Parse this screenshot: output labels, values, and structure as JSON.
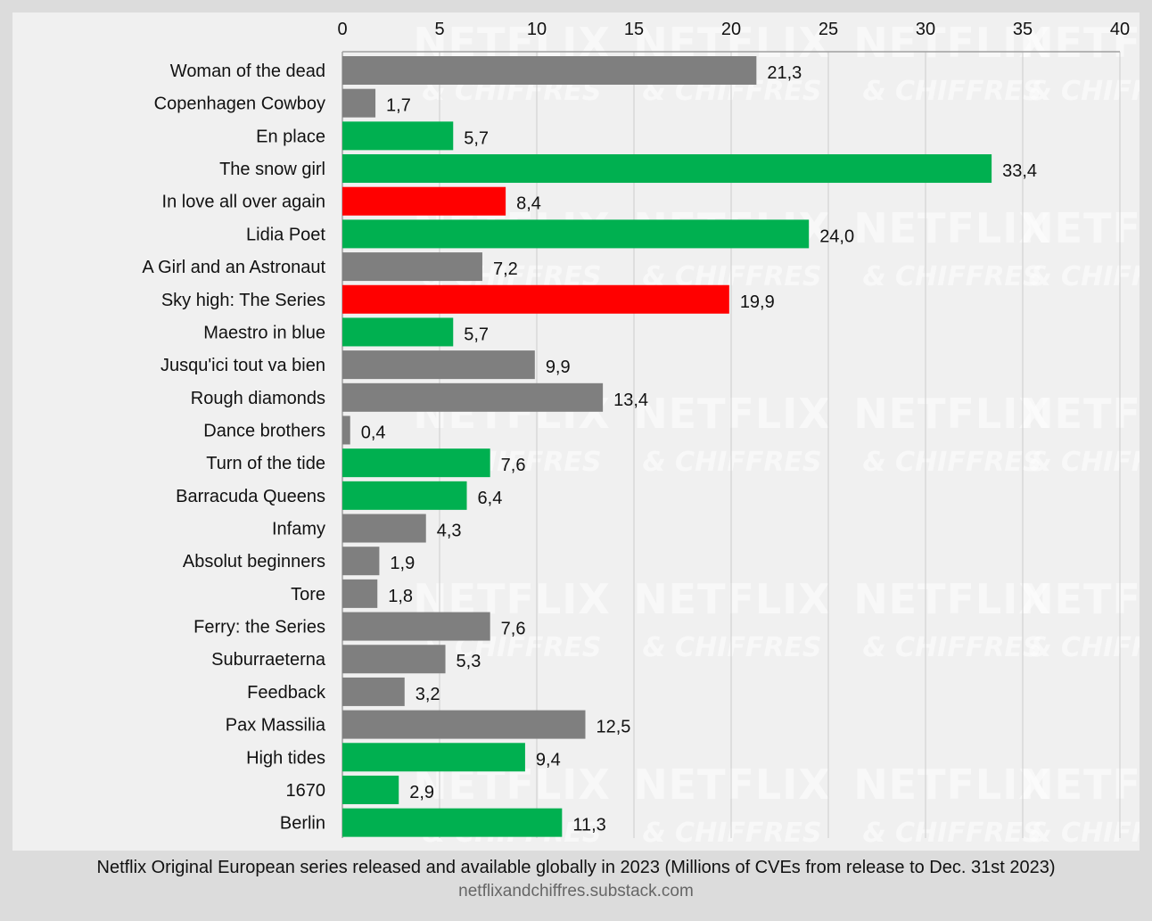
{
  "chart_data": {
    "type": "bar",
    "orientation": "horizontal",
    "categories": [
      "Woman of the dead",
      "Copenhagen Cowboy",
      "En place",
      "The snow girl",
      "In love all over again",
      "Lidia Poet",
      "A Girl and an Astronaut",
      "Sky high: The Series",
      "Maestro in blue",
      "Jusqu'ici tout va bien",
      "Rough diamonds",
      "Dance brothers",
      "Turn of the tide",
      "Barracuda Queens",
      "Infamy",
      "Absolut beginners",
      "Tore",
      "Ferry: the Series",
      "Suburraeterna",
      "Feedback",
      "Pax Massilia",
      "High tides",
      "1670",
      "Berlin"
    ],
    "values": [
      21.3,
      1.7,
      5.7,
      33.4,
      8.4,
      24.0,
      7.2,
      19.9,
      5.7,
      9.9,
      13.4,
      0.4,
      7.6,
      6.4,
      4.3,
      1.9,
      1.8,
      7.6,
      5.3,
      3.2,
      12.5,
      9.4,
      2.9,
      11.3
    ],
    "value_labels": [
      "21,3",
      "1,7",
      "5,7",
      "33,4",
      "8,4",
      "24,0",
      "7,2",
      "19,9",
      "5,7",
      "9,9",
      "13,4",
      "0,4",
      "7,6",
      "6,4",
      "4,3",
      "1,9",
      "1,8",
      "7,6",
      "5,3",
      "3,2",
      "12,5",
      "9,4",
      "2,9",
      "11,3"
    ],
    "bar_colors": [
      "gray",
      "gray",
      "green",
      "green",
      "red",
      "green",
      "gray",
      "red",
      "green",
      "gray",
      "gray",
      "gray",
      "green",
      "green",
      "gray",
      "gray",
      "gray",
      "gray",
      "gray",
      "gray",
      "gray",
      "green",
      "green",
      "green"
    ],
    "x_ticks": [
      "0",
      "5",
      "10",
      "15",
      "20",
      "25",
      "30",
      "35",
      "40"
    ],
    "xlim": [
      0,
      40
    ],
    "axis_position": "top",
    "grid": true
  },
  "colors": {
    "gray": "#7f7f7f",
    "green": "#00b050",
    "red": "#ff0000",
    "grid": "#cccccc"
  },
  "watermark": {
    "main": "NETFLIX",
    "sub": "& CHIFFRES"
  },
  "footer": {
    "caption": "Netflix Original European series released and available globally in 2023 (Millions of CVEs from release to Dec. 31st 2023)",
    "source": "netflixandchiffres.substack.com"
  }
}
